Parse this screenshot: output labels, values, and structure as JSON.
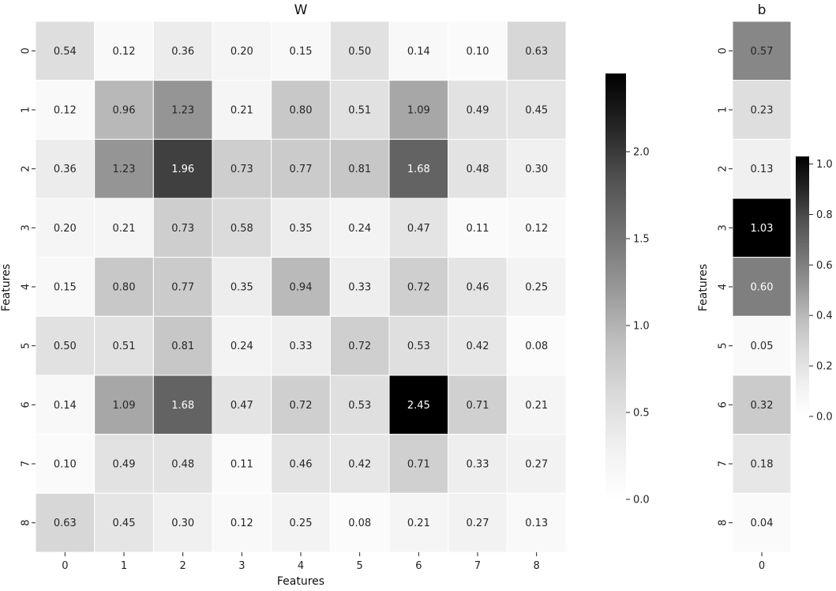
{
  "chart_data": [
    {
      "type": "heatmap",
      "title": "W",
      "xlabel": "Features",
      "ylabel": "Features",
      "x_categories": [
        "0",
        "1",
        "2",
        "3",
        "4",
        "5",
        "6",
        "7",
        "8"
      ],
      "y_categories": [
        "0",
        "1",
        "2",
        "3",
        "4",
        "5",
        "6",
        "7",
        "8"
      ],
      "values": [
        [
          0.54,
          0.12,
          0.36,
          0.2,
          0.15,
          0.5,
          0.14,
          0.1,
          0.63
        ],
        [
          0.12,
          0.96,
          1.23,
          0.21,
          0.8,
          0.51,
          1.09,
          0.49,
          0.45
        ],
        [
          0.36,
          1.23,
          1.96,
          0.73,
          0.77,
          0.81,
          1.68,
          0.48,
          0.3
        ],
        [
          0.2,
          0.21,
          0.73,
          0.58,
          0.35,
          0.24,
          0.47,
          0.11,
          0.12
        ],
        [
          0.15,
          0.8,
          0.77,
          0.35,
          0.94,
          0.33,
          0.72,
          0.46,
          0.25
        ],
        [
          0.5,
          0.51,
          0.81,
          0.24,
          0.33,
          0.72,
          0.53,
          0.42,
          0.08
        ],
        [
          0.14,
          1.09,
          1.68,
          0.47,
          0.72,
          0.53,
          2.45,
          0.71,
          0.21
        ],
        [
          0.1,
          0.49,
          0.48,
          0.11,
          0.46,
          0.42,
          0.71,
          0.33,
          0.27
        ],
        [
          0.63,
          0.45,
          0.3,
          0.12,
          0.25,
          0.08,
          0.21,
          0.27,
          0.13
        ]
      ],
      "value_range": [
        0.0,
        2.45
      ],
      "colormap": "Greys",
      "colorbar_ticks": [
        "0.0",
        "0.5",
        "1.0",
        "1.5",
        "2.0"
      ],
      "colorbar_tick_values": [
        0.0,
        0.5,
        1.0,
        1.5,
        2.0
      ]
    },
    {
      "type": "heatmap",
      "title": "b",
      "xlabel": "",
      "ylabel": "Features",
      "x_categories": [
        "0"
      ],
      "y_categories": [
        "0",
        "1",
        "2",
        "3",
        "4",
        "5",
        "6",
        "7",
        "8"
      ],
      "values": [
        [
          0.57
        ],
        [
          0.23
        ],
        [
          0.13
        ],
        [
          1.03
        ],
        [
          0.6
        ],
        [
          0.05
        ],
        [
          0.32
        ],
        [
          0.18
        ],
        [
          0.04
        ]
      ],
      "value_range": [
        0.0,
        1.03
      ],
      "colormap": "Greys",
      "colorbar_ticks": [
        "0.0",
        "0.2",
        "0.4",
        "0.6",
        "0.8",
        "1.0"
      ],
      "colorbar_tick_values": [
        0.0,
        0.2,
        0.4,
        0.6,
        0.8,
        1.0
      ]
    }
  ]
}
